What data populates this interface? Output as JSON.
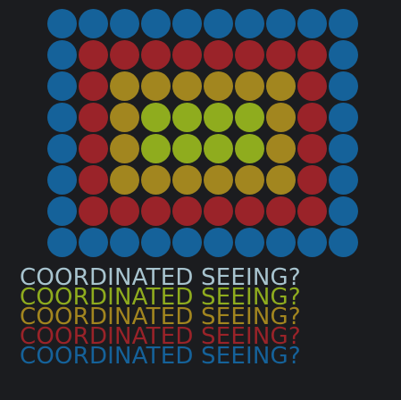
{
  "colors": {
    "background": "#1b1c1f",
    "blue": "#15629a",
    "red": "#9a2329",
    "gold": "#a2861f",
    "green": "#8fac1e",
    "light": "#a8c4cf"
  },
  "dot_grid": {
    "columns": 10,
    "rows": 8,
    "pattern": [
      "BBBBBBBBBB",
      "BRRRRRRRRB",
      "BRGGGGGGRB",
      "BRGLLLLGRB",
      "BRGLLLLGRB",
      "BRGGGGGGRB",
      "BRRRRRRRRB",
      "BBBBBBBBBB"
    ],
    "legend": {
      "B": "blue",
      "R": "red",
      "G": "gold",
      "L": "green"
    }
  },
  "captions": [
    {
      "text": "COORDINATED SEEING?",
      "color": "light"
    },
    {
      "text": "COORDINATED SEEING?",
      "color": "green"
    },
    {
      "text": "COORDINATED SEEING?",
      "color": "gold"
    },
    {
      "text": "COORDINATED SEEING?",
      "color": "red"
    },
    {
      "text": "COORDINATED SEEING?",
      "color": "blue"
    }
  ]
}
